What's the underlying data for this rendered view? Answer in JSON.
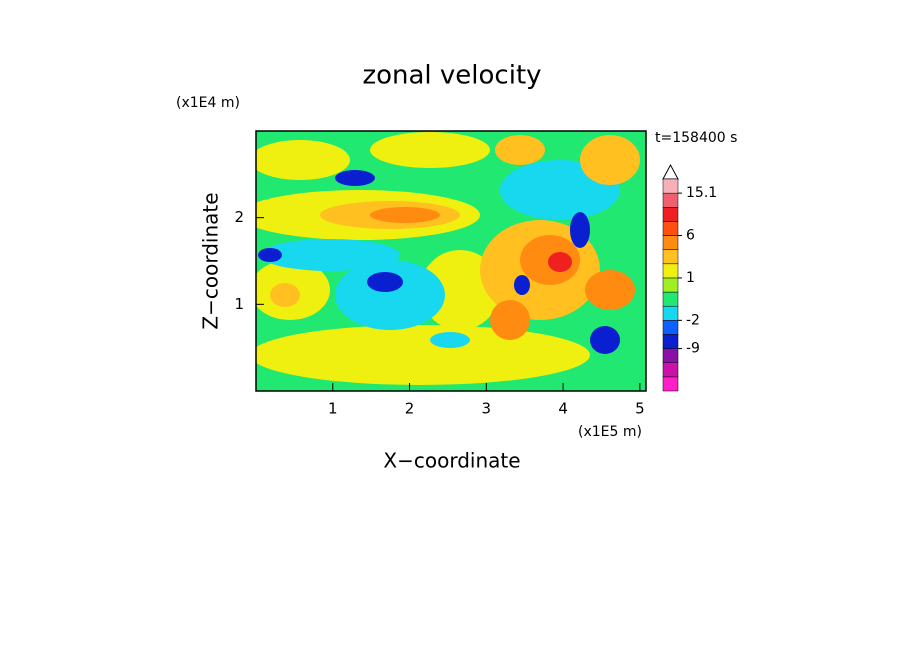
{
  "chart_data": {
    "type": "contour",
    "title": "zonal velocity",
    "xlabel": "X−coordinate",
    "ylabel": "Z−coordinate",
    "x_unit": "(x1E5 m)",
    "y_unit": "(x1E4 m)",
    "annotation": "t=158400 s",
    "xlim": [
      0,
      5.08
    ],
    "ylim": [
      0,
      3.0
    ],
    "xticks": [
      1,
      2,
      3,
      4,
      5
    ],
    "yticks": [
      1,
      2
    ],
    "colorbar": {
      "levels": [
        -18,
        -15,
        -12,
        -9,
        -6,
        -2,
        -1,
        0,
        1,
        2,
        3,
        6,
        9,
        12,
        15.1,
        18
      ],
      "colors": [
        "#ff1fc8",
        "#cc11aa",
        "#8a10a8",
        "#0a1fd0",
        "#1060ff",
        "#18d8f0",
        "#20e870",
        "#a0f020",
        "#f0f010",
        "#ffc020",
        "#ff8c10",
        "#ff5010",
        "#f02020",
        "#f06070",
        "#f8b0b8"
      ],
      "ticks": [
        15.1,
        6,
        1,
        -2,
        -9
      ]
    }
  }
}
